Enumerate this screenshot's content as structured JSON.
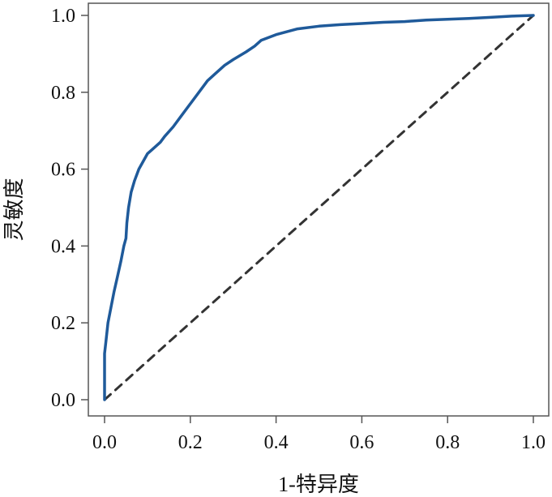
{
  "chart_data": {
    "type": "line",
    "title": "",
    "xlabel": "1-特异度",
    "ylabel": "灵敏度",
    "xlim": [
      0,
      1
    ],
    "ylim": [
      0,
      1
    ],
    "xticks": [
      "0.0",
      "0.2",
      "0.4",
      "0.6",
      "0.8",
      "1.0"
    ],
    "yticks": [
      "0.0",
      "0.2",
      "0.4",
      "0.6",
      "0.8",
      "1.0"
    ],
    "grid": false,
    "legend": "none",
    "series": [
      {
        "color": "#1f5a9a",
        "style": "solid",
        "x": [
          0,
          0,
          0.003,
          0.008,
          0.015,
          0.022,
          0.03,
          0.038,
          0.045,
          0.05,
          0.052,
          0.056,
          0.062,
          0.07,
          0.08,
          0.09,
          0.1,
          0.11,
          0.12,
          0.13,
          0.14,
          0.16,
          0.18,
          0.2,
          0.22,
          0.24,
          0.26,
          0.28,
          0.3,
          0.33,
          0.35,
          0.365,
          0.4,
          0.45,
          0.5,
          0.55,
          0.6,
          0.65,
          0.7,
          0.75,
          0.8,
          0.85,
          0.9,
          0.95,
          1.0
        ],
        "y": [
          0,
          0.12,
          0.15,
          0.2,
          0.24,
          0.28,
          0.32,
          0.36,
          0.4,
          0.42,
          0.46,
          0.5,
          0.54,
          0.57,
          0.6,
          0.62,
          0.64,
          0.65,
          0.66,
          0.67,
          0.685,
          0.71,
          0.74,
          0.77,
          0.8,
          0.83,
          0.85,
          0.87,
          0.885,
          0.905,
          0.92,
          0.935,
          0.95,
          0.965,
          0.972,
          0.976,
          0.979,
          0.982,
          0.984,
          0.988,
          0.99,
          0.992,
          0.995,
          0.998,
          1.0
        ]
      },
      {
        "color": "#333333",
        "style": "dashed",
        "x": [
          0,
          1
        ],
        "y": [
          0,
          1
        ]
      }
    ]
  }
}
